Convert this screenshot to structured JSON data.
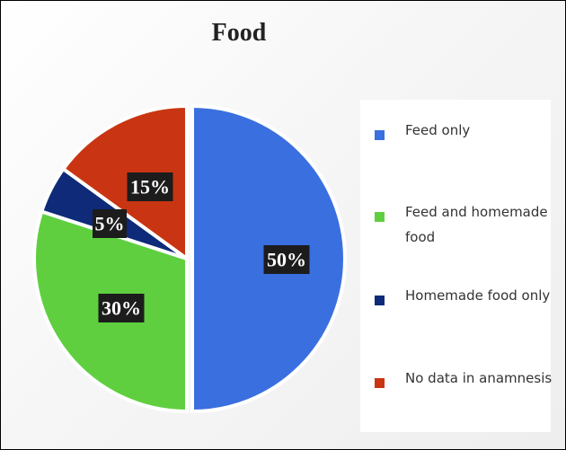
{
  "chart_data": {
    "type": "pie",
    "title": "Food",
    "slices": [
      {
        "label": "Feed only",
        "value": 50,
        "display": "50%",
        "color": "#3a6fe0"
      },
      {
        "label": "Feed and homemade food",
        "value": 30,
        "display": "30%",
        "color": "#5fcf40"
      },
      {
        "label": "Homemade food only",
        "value": 5,
        "display": "5%",
        "color": "#0e2a78"
      },
      {
        "label": "No data in anamnesis",
        "value": 15,
        "display": "15%",
        "color": "#c93512"
      }
    ],
    "legend_position": "right"
  }
}
